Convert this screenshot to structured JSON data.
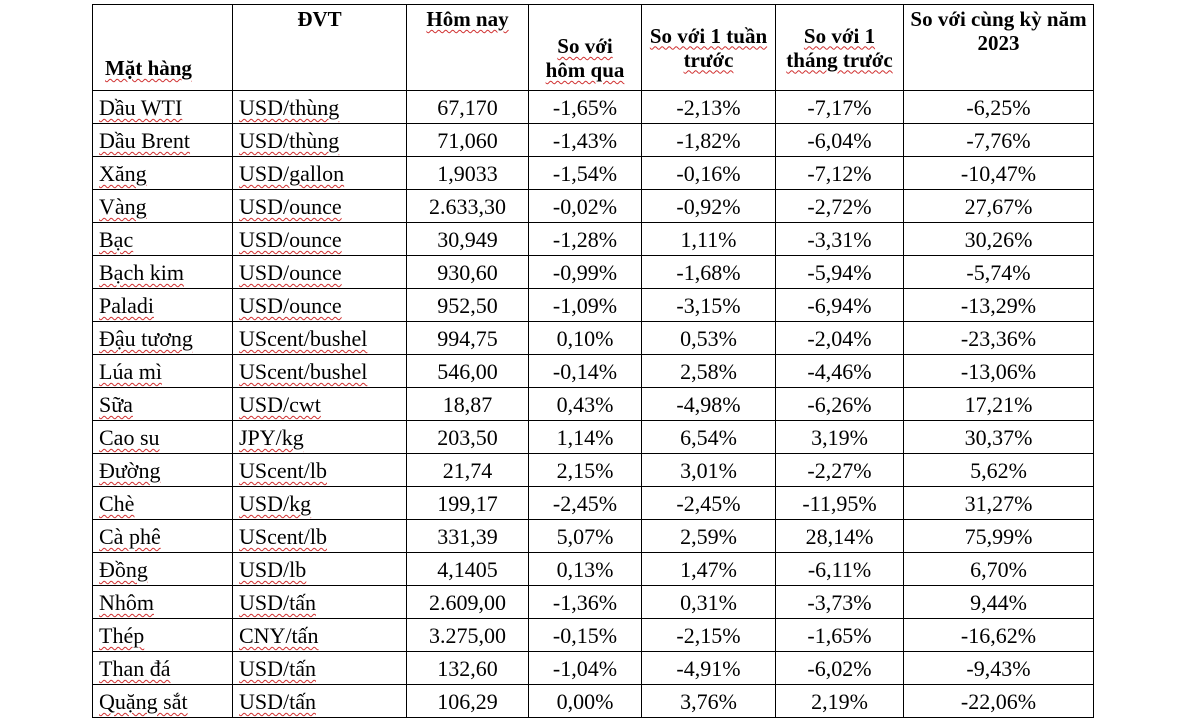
{
  "table": {
    "headers": {
      "item": "Mặt hàng",
      "unit": "ĐVT",
      "today": "Hôm nay",
      "vs_yesterday": "So với hôm qua",
      "vs_week": "So với 1 tuần trước",
      "vs_month": "So với 1 tháng trước",
      "vs_year": "So với cùng kỳ năm 2023"
    },
    "rows": [
      {
        "item": "Dầu WTI",
        "unit": "USD/thùng",
        "today": "67,170",
        "vs_yesterday": "-1,65%",
        "vs_week": "-2,13%",
        "vs_month": "-7,17%",
        "vs_year": "-6,25%"
      },
      {
        "item": "Dầu Brent",
        "unit": "USD/thùng",
        "today": "71,060",
        "vs_yesterday": "-1,43%",
        "vs_week": "-1,82%",
        "vs_month": "-6,04%",
        "vs_year": "-7,76%"
      },
      {
        "item": "Xăng",
        "unit": "USD/gallon",
        "today": "1,9033",
        "vs_yesterday": "-1,54%",
        "vs_week": "-0,16%",
        "vs_month": "-7,12%",
        "vs_year": "-10,47%"
      },
      {
        "item": "Vàng",
        "unit": "USD/ounce",
        "today": "2.633,30",
        "vs_yesterday": "-0,02%",
        "vs_week": "-0,92%",
        "vs_month": "-2,72%",
        "vs_year": "27,67%"
      },
      {
        "item": "Bạc",
        "unit": "USD/ounce",
        "today": "30,949",
        "vs_yesterday": "-1,28%",
        "vs_week": "1,11%",
        "vs_month": "-3,31%",
        "vs_year": "30,26%"
      },
      {
        "item": "Bạch kim",
        "unit": "USD/ounce",
        "today": "930,60",
        "vs_yesterday": "-0,99%",
        "vs_week": "-1,68%",
        "vs_month": "-5,94%",
        "vs_year": "-5,74%"
      },
      {
        "item": "Paladi",
        "unit": "USD/ounce",
        "today": "952,50",
        "vs_yesterday": "-1,09%",
        "vs_week": "-3,15%",
        "vs_month": "-6,94%",
        "vs_year": "-13,29%"
      },
      {
        "item": "Đậu tương",
        "unit": "UScent/bushel",
        "today": "994,75",
        "vs_yesterday": "0,10%",
        "vs_week": "0,53%",
        "vs_month": "-2,04%",
        "vs_year": "-23,36%"
      },
      {
        "item": "Lúa mì",
        "unit": "UScent/bushel",
        "today": "546,00",
        "vs_yesterday": "-0,14%",
        "vs_week": "2,58%",
        "vs_month": "-4,46%",
        "vs_year": "-13,06%"
      },
      {
        "item": "Sữa",
        "unit": "USD/cwt",
        "today": "18,87",
        "vs_yesterday": "0,43%",
        "vs_week": "-4,98%",
        "vs_month": "-6,26%",
        "vs_year": "17,21%"
      },
      {
        "item": "Cao su",
        "unit": "JPY/kg",
        "today": "203,50",
        "vs_yesterday": "1,14%",
        "vs_week": "6,54%",
        "vs_month": "3,19%",
        "vs_year": "30,37%"
      },
      {
        "item": "Đường",
        "unit": "UScent/lb",
        "today": "21,74",
        "vs_yesterday": "2,15%",
        "vs_week": "3,01%",
        "vs_month": "-2,27%",
        "vs_year": "5,62%"
      },
      {
        "item": "Chè",
        "unit": "USD/kg",
        "today": "199,17",
        "vs_yesterday": "-2,45%",
        "vs_week": "-2,45%",
        "vs_month": "-11,95%",
        "vs_year": "31,27%"
      },
      {
        "item": "Cà phê",
        "unit": "UScent/lb",
        "today": "331,39",
        "vs_yesterday": "5,07%",
        "vs_week": "2,59%",
        "vs_month": "28,14%",
        "vs_year": "75,99%"
      },
      {
        "item": "Đồng",
        "unit": "USD/lb",
        "today": "4,1405",
        "vs_yesterday": "0,13%",
        "vs_week": "1,47%",
        "vs_month": "-6,11%",
        "vs_year": "6,70%"
      },
      {
        "item": "Nhôm",
        "unit": "USD/tấn",
        "today": "2.609,00",
        "vs_yesterday": "-1,36%",
        "vs_week": "0,31%",
        "vs_month": "-3,73%",
        "vs_year": "9,44%"
      },
      {
        "item": "Thép",
        "unit": "CNY/tấn",
        "today": "3.275,00",
        "vs_yesterday": "-0,15%",
        "vs_week": "-2,15%",
        "vs_month": "-1,65%",
        "vs_year": "-16,62%"
      },
      {
        "item": "Than đá",
        "unit": "USD/tấn",
        "today": "132,60",
        "vs_yesterday": "-1,04%",
        "vs_week": "-4,91%",
        "vs_month": "-6,02%",
        "vs_year": "-9,43%"
      },
      {
        "item": "Quặng sắt",
        "unit": "USD/tấn",
        "today": "106,29",
        "vs_yesterday": "0,00%",
        "vs_week": "3,76%",
        "vs_month": "2,19%",
        "vs_year": "-22,06%"
      }
    ]
  }
}
